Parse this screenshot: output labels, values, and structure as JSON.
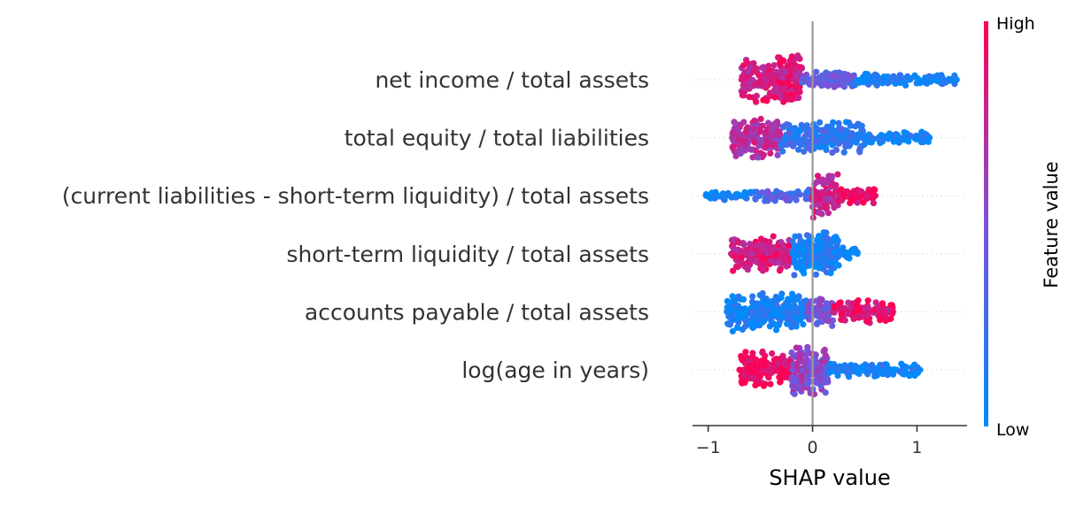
{
  "chart_data": {
    "type": "scatter",
    "subtype": "shap-beeswarm",
    "title": "",
    "xlabel": "SHAP value",
    "ylabel": "",
    "xlim": [
      -1.15,
      1.48
    ],
    "xticks": [
      {
        "value": -1,
        "label": "−1"
      },
      {
        "value": 0,
        "label": "0"
      },
      {
        "value": 1,
        "label": "1"
      }
    ],
    "zero_line": 0,
    "grid": false,
    "colorbar": {
      "label": "Feature value",
      "high_label": "High",
      "low_label": "Low",
      "low_color": "#008bfb",
      "mid_color": "#7c52d8",
      "high_color": "#ff0052",
      "placement": "right"
    },
    "features": [
      {
        "name": "net income / total assets",
        "min": -0.68,
        "max": 1.38,
        "segments": [
          {
            "from": -0.68,
            "to": -0.1,
            "width": 0.95,
            "color_value": 0.85
          },
          {
            "from": -0.1,
            "to": 0.4,
            "width": 0.35,
            "color_value": 0.38
          },
          {
            "from": 0.4,
            "to": 1.38,
            "width": 0.25,
            "color_value": 0.06
          }
        ]
      },
      {
        "name": "total equity / total liabilities",
        "min": -0.77,
        "max": 1.12,
        "segments": [
          {
            "from": -0.77,
            "to": -0.3,
            "width": 0.85,
            "color_value": 0.7
          },
          {
            "from": -0.3,
            "to": 0.5,
            "width": 0.6,
            "color_value": 0.2
          },
          {
            "from": 0.5,
            "to": 1.12,
            "width": 0.25,
            "color_value": 0.04
          }
        ]
      },
      {
        "name": "(current liabilities - short-term liquidity) / total assets",
        "min": -1.02,
        "max": 0.6,
        "segments": [
          {
            "from": -1.02,
            "to": -0.55,
            "width": 0.18,
            "color_value": 0.04
          },
          {
            "from": -0.55,
            "to": 0.0,
            "width": 0.25,
            "color_value": 0.3
          },
          {
            "from": 0.0,
            "to": 0.25,
            "width": 0.85,
            "color_value": 0.78
          },
          {
            "from": 0.25,
            "to": 0.6,
            "width": 0.35,
            "color_value": 0.95
          }
        ]
      },
      {
        "name": "short-term liquidity / total assets",
        "min": -0.78,
        "max": 0.43,
        "segments": [
          {
            "from": -0.78,
            "to": -0.2,
            "width": 0.7,
            "color_value": 0.82
          },
          {
            "from": -0.2,
            "to": 0.25,
            "width": 0.95,
            "color_value": 0.1
          },
          {
            "from": 0.25,
            "to": 0.43,
            "width": 0.25,
            "color_value": 0.03
          }
        ]
      },
      {
        "name": "accounts payable / total assets",
        "min": -0.82,
        "max": 0.77,
        "segments": [
          {
            "from": -0.82,
            "to": -0.05,
            "width": 0.8,
            "color_value": 0.08
          },
          {
            "from": -0.05,
            "to": 0.2,
            "width": 0.6,
            "color_value": 0.45
          },
          {
            "from": 0.2,
            "to": 0.77,
            "width": 0.45,
            "color_value": 0.92
          }
        ]
      },
      {
        "name": "log(age in years)",
        "min": -0.7,
        "max": 1.03,
        "segments": [
          {
            "from": -0.7,
            "to": -0.2,
            "width": 0.7,
            "color_value": 0.97
          },
          {
            "from": -0.2,
            "to": 0.15,
            "width": 0.95,
            "color_value": 0.55
          },
          {
            "from": 0.15,
            "to": 1.03,
            "width": 0.3,
            "color_value": 0.05
          }
        ]
      }
    ]
  }
}
